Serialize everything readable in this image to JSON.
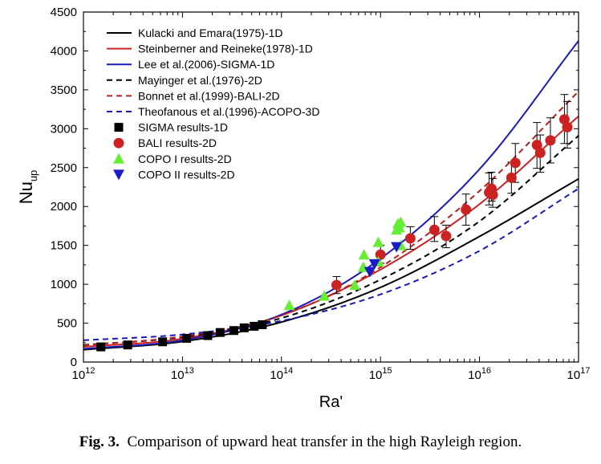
{
  "caption": {
    "label": "Fig. 3.",
    "text": "Comparison of upward heat transfer in the high Rayleigh region."
  },
  "chart_data": {
    "type": "scatter",
    "x_scale": "log",
    "xlabel": "Ra'",
    "ylabel": "Nu",
    "ylabel_sub": "up",
    "xlim": [
      1000000000000.0,
      1e+17
    ],
    "ylim": [
      0,
      4500
    ],
    "x_ticks": [
      {
        "value": 1000000000000.0,
        "exp": "12"
      },
      {
        "value": 10000000000000.0,
        "exp": "13"
      },
      {
        "value": 100000000000000.0,
        "exp": "14"
      },
      {
        "value": 1000000000000000.0,
        "exp": "15"
      },
      {
        "value": 1e+16,
        "exp": "16"
      },
      {
        "value": 1e+17,
        "exp": "17"
      }
    ],
    "x_tick_base": "10",
    "y_ticks": [
      0,
      500,
      1000,
      1500,
      2000,
      2500,
      3000,
      3500,
      4000,
      4500
    ],
    "legend_position": "top-left",
    "lines": [
      {
        "name": "Kulacki and Emara(1975)-1D",
        "color": "#000000",
        "dash": "solid",
        "points": [
          [
            1000000000000.0,
            158
          ],
          [
            10000000000000.0,
            264
          ],
          [
            100000000000000.0,
            514
          ],
          [
            1000000000000000.0,
            960
          ],
          [
            1e+16,
            1615
          ],
          [
            1e+17,
            2355
          ]
        ]
      },
      {
        "name": "Steinberner and Reineke(1978)-1D",
        "color": "#cc2222",
        "dash": "solid",
        "points": [
          [
            1000000000000.0,
            195
          ],
          [
            10000000000000.0,
            300
          ],
          [
            100000000000000.0,
            600
          ],
          [
            1000000000000000.0,
            1190
          ],
          [
            1e+16,
            2030
          ],
          [
            1e+17,
            3160
          ]
        ]
      },
      {
        "name": "Lee et al.(2006)-SIGMA-1D",
        "color": "#1a1ab8",
        "dash": "solid",
        "points": [
          [
            1000000000000.0,
            170
          ],
          [
            10000000000000.0,
            280
          ],
          [
            100000000000000.0,
            610
          ],
          [
            1000000000000000.0,
            1330
          ],
          [
            1e+16,
            2480
          ],
          [
            1e+17,
            4130
          ]
        ]
      },
      {
        "name": "Mayinger et al.(1976)-2D",
        "color": "#000000",
        "dash": "dash",
        "points": [
          [
            1000000000000.0,
            220
          ],
          [
            10000000000000.0,
            320
          ],
          [
            100000000000000.0,
            565
          ],
          [
            1000000000000000.0,
            1060
          ],
          [
            1e+16,
            1810
          ],
          [
            1e+17,
            2910
          ]
        ]
      },
      {
        "name": "Bonnet et al.(1999)-BALI-2D",
        "color": "#b22222",
        "dash": "dash",
        "points": [
          [
            1000000000000.0,
            215
          ],
          [
            10000000000000.0,
            330
          ],
          [
            100000000000000.0,
            600
          ],
          [
            1000000000000000.0,
            1220
          ],
          [
            1e+16,
            2200
          ],
          [
            1e+17,
            3480
          ]
        ]
      },
      {
        "name": "Theofanous et al.(1996)-ACOPO-3D",
        "color": "#1a1ab8",
        "dash": "dash",
        "points": [
          [
            1000000000000.0,
            280
          ],
          [
            10000000000000.0,
            355
          ],
          [
            100000000000000.0,
            530
          ],
          [
            1000000000000000.0,
            870
          ],
          [
            1e+16,
            1430
          ],
          [
            1e+17,
            2230
          ]
        ]
      }
    ],
    "scatter": [
      {
        "name": "SIGMA results-1D",
        "color": "#000000",
        "marker": "square",
        "points": [
          [
            1500000000000.0,
            195
          ],
          [
            2800000000000.0,
            220
          ],
          [
            6300000000000.0,
            260
          ],
          [
            11000000000000.0,
            305
          ],
          [
            18000000000000.0,
            340
          ],
          [
            24000000000000.0,
            380
          ],
          [
            33000000000000.0,
            405
          ],
          [
            42000000000000.0,
            440
          ],
          [
            53000000000000.0,
            460
          ],
          [
            64000000000000.0,
            480
          ]
        ]
      },
      {
        "name": "BALI results-2D",
        "color": "#cc2222",
        "marker": "circle",
        "points": [
          [
            360000000000000.0,
            990
          ],
          [
            1000000000000000.0,
            1380
          ],
          [
            2000000000000000.0,
            1590
          ],
          [
            3500000000000000.0,
            1700
          ],
          [
            4600000000000000.0,
            1620
          ],
          [
            7300000000000000.0,
            1960
          ],
          [
            1.25e+16,
            2180
          ],
          [
            1.32e+16,
            2230
          ],
          [
            1.36e+16,
            2150
          ],
          [
            2.1e+16,
            2370
          ],
          [
            2.3e+16,
            2560
          ],
          [
            3.8e+16,
            2790
          ],
          [
            4.1e+16,
            2690
          ],
          [
            5.2e+16,
            2850
          ],
          [
            7.2e+16,
            3120
          ],
          [
            7.7e+16,
            3020
          ]
        ],
        "errors": [
          [
            360000000000000.0,
            880,
            1100
          ],
          [
            1000000000000000.0,
            1270,
            1500
          ],
          [
            2000000000000000.0,
            1450,
            1740
          ],
          [
            3500000000000000.0,
            1550,
            1870
          ],
          [
            4600000000000000.0,
            1470,
            1760
          ],
          [
            7300000000000000.0,
            1760,
            2160
          ],
          [
            1.25e+16,
            2020,
            2430
          ],
          [
            1.32e+16,
            2070,
            2440
          ],
          [
            1.36e+16,
            1990,
            2360
          ],
          [
            2.1e+16,
            2170,
            2570
          ],
          [
            2.3e+16,
            2310,
            2810
          ],
          [
            3.8e+16,
            2490,
            3080
          ],
          [
            4.1e+16,
            2440,
            2920
          ],
          [
            5.2e+16,
            2560,
            3140
          ],
          [
            7.2e+16,
            2810,
            3440
          ],
          [
            7.7e+16,
            2750,
            3350
          ]
        ]
      },
      {
        "name": "COPO I results-2D",
        "color": "#66ee33",
        "marker": "triangle-up",
        "points": [
          [
            120000000000000.0,
            730
          ],
          [
            270000000000000.0,
            850
          ],
          [
            550000000000000.0,
            990
          ],
          [
            670000000000000.0,
            1220
          ],
          [
            680000000000000.0,
            1380
          ],
          [
            950000000000000.0,
            1540
          ],
          [
            950000000000000.0,
            1290
          ],
          [
            1450000000000000.0,
            1700
          ],
          [
            1500000000000000.0,
            1780
          ],
          [
            1550000000000000.0,
            1730
          ],
          [
            1600000000000000.0,
            1800
          ],
          [
            1600000000000000.0,
            1500
          ]
        ]
      },
      {
        "name": "COPO II results-2D",
        "color": "#1a1acc",
        "marker": "triangle-down",
        "points": [
          [
            780000000000000.0,
            1160
          ],
          [
            870000000000000.0,
            1260
          ],
          [
            1450000000000000.0,
            1480
          ]
        ]
      }
    ]
  }
}
